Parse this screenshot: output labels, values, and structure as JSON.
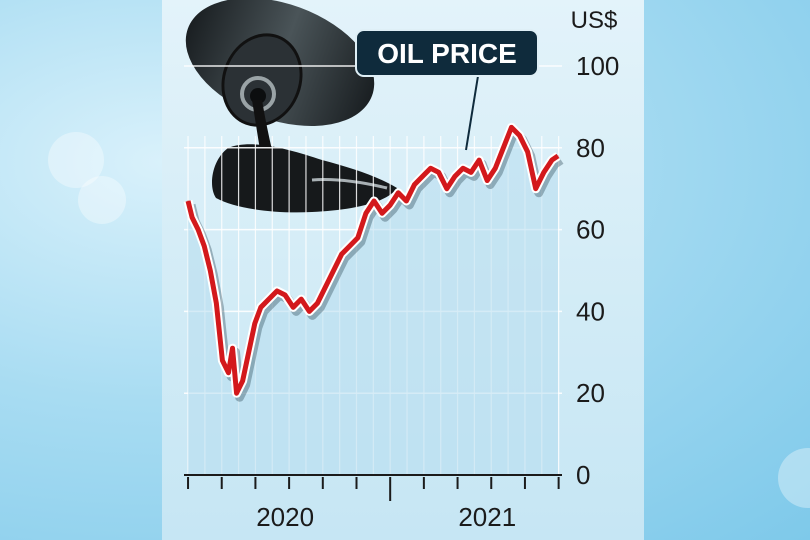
{
  "chart_data": {
    "type": "line",
    "title": "OIL PRICE",
    "unit_label": "US$",
    "ylim": [
      0,
      100
    ],
    "y_ticks": [
      0,
      20,
      40,
      60,
      80,
      100
    ],
    "x_labels": [
      {
        "label": "2020",
        "x": 2020.5
      },
      {
        "label": "2021",
        "x": 2021.5
      }
    ],
    "xlim": [
      2019.98,
      2021.85
    ],
    "grid": true,
    "colors": {
      "line": "#d3191c",
      "line_outline": "#ffffff",
      "title_bg": "#0f2b3c",
      "grid": "#ffffff"
    },
    "series": [
      {
        "name": "",
        "x": [
          2020.0,
          2020.02,
          2020.05,
          2020.08,
          2020.11,
          2020.14,
          2020.17,
          2020.2,
          2020.22,
          2020.24,
          2020.27,
          2020.3,
          2020.33,
          2020.36,
          2020.4,
          2020.44,
          2020.48,
          2020.52,
          2020.56,
          2020.6,
          2020.64,
          2020.68,
          2020.72,
          2020.76,
          2020.8,
          2020.84,
          2020.88,
          2020.92,
          2020.96,
          2021.0,
          2021.04,
          2021.08,
          2021.12,
          2021.16,
          2021.2,
          2021.24,
          2021.28,
          2021.32,
          2021.36,
          2021.4,
          2021.44,
          2021.48,
          2021.52,
          2021.56,
          2021.6,
          2021.64,
          2021.68,
          2021.72,
          2021.76,
          2021.8,
          2021.83
        ],
        "values": [
          67,
          63,
          60,
          56,
          50,
          42,
          28,
          25,
          31,
          20,
          23,
          30,
          37,
          41,
          43,
          45,
          44,
          41,
          43,
          40,
          42,
          46,
          50,
          54,
          56,
          58,
          64,
          67,
          64,
          66,
          69,
          67,
          71,
          73,
          75,
          74,
          70,
          73,
          75,
          74,
          77,
          72,
          75,
          80,
          85,
          83,
          79,
          70,
          74,
          77,
          78
        ]
      }
    ]
  }
}
